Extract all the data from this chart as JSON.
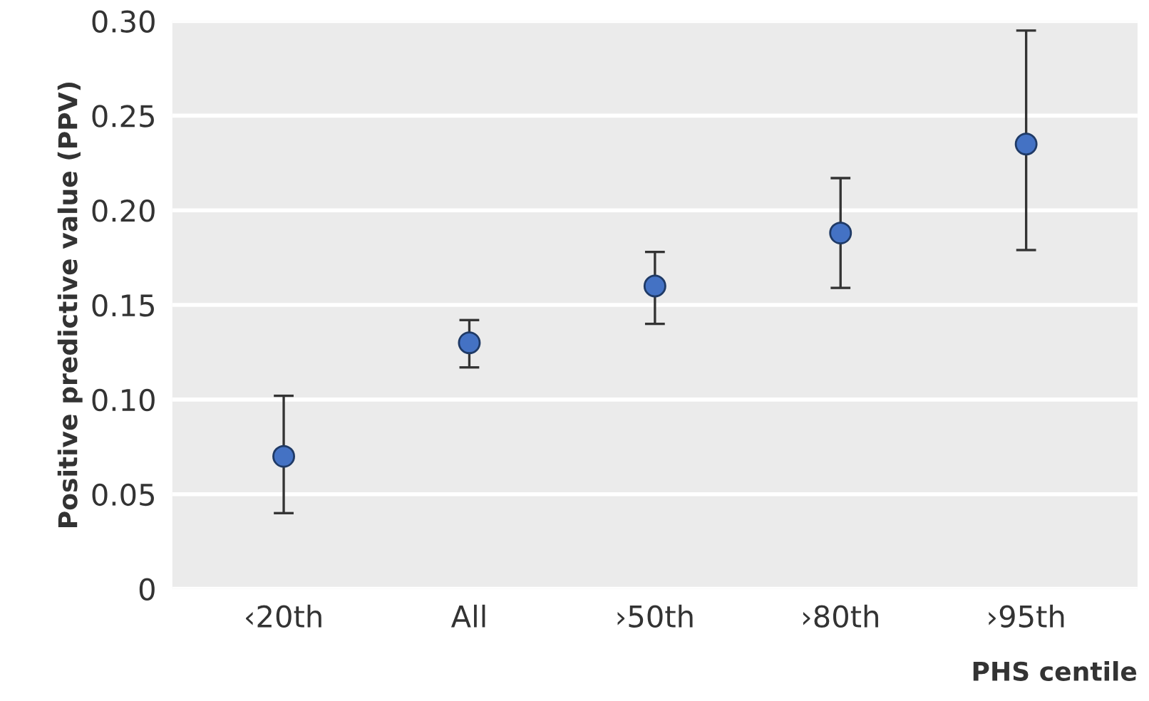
{
  "chart_data": {
    "type": "scatter",
    "xlabel": "PHS centile",
    "ylabel": "Positive predictive value (PPV)",
    "categories": [
      "‹20th",
      "All",
      "›50th",
      "›80th",
      "›95th"
    ],
    "values": [
      0.07,
      0.13,
      0.16,
      0.188,
      0.235
    ],
    "errors": [
      [
        0.04,
        0.102
      ],
      [
        0.117,
        0.142
      ],
      [
        0.14,
        0.178
      ],
      [
        0.159,
        0.217
      ],
      [
        0.179,
        0.295
      ]
    ],
    "color": "#4472c4",
    "marker": "circle",
    "grid": "y",
    "ylim": [
      0,
      0.3
    ],
    "yticks": [
      {
        "value": 0,
        "label": "0"
      },
      {
        "value": 0.05,
        "label": "0.05"
      },
      {
        "value": 0.1,
        "label": "0.10"
      },
      {
        "value": 0.15,
        "label": "0.15"
      },
      {
        "value": 0.2,
        "label": "0.20"
      },
      {
        "value": 0.25,
        "label": "0.25"
      },
      {
        "value": 0.3,
        "label": "0.30"
      }
    ]
  }
}
